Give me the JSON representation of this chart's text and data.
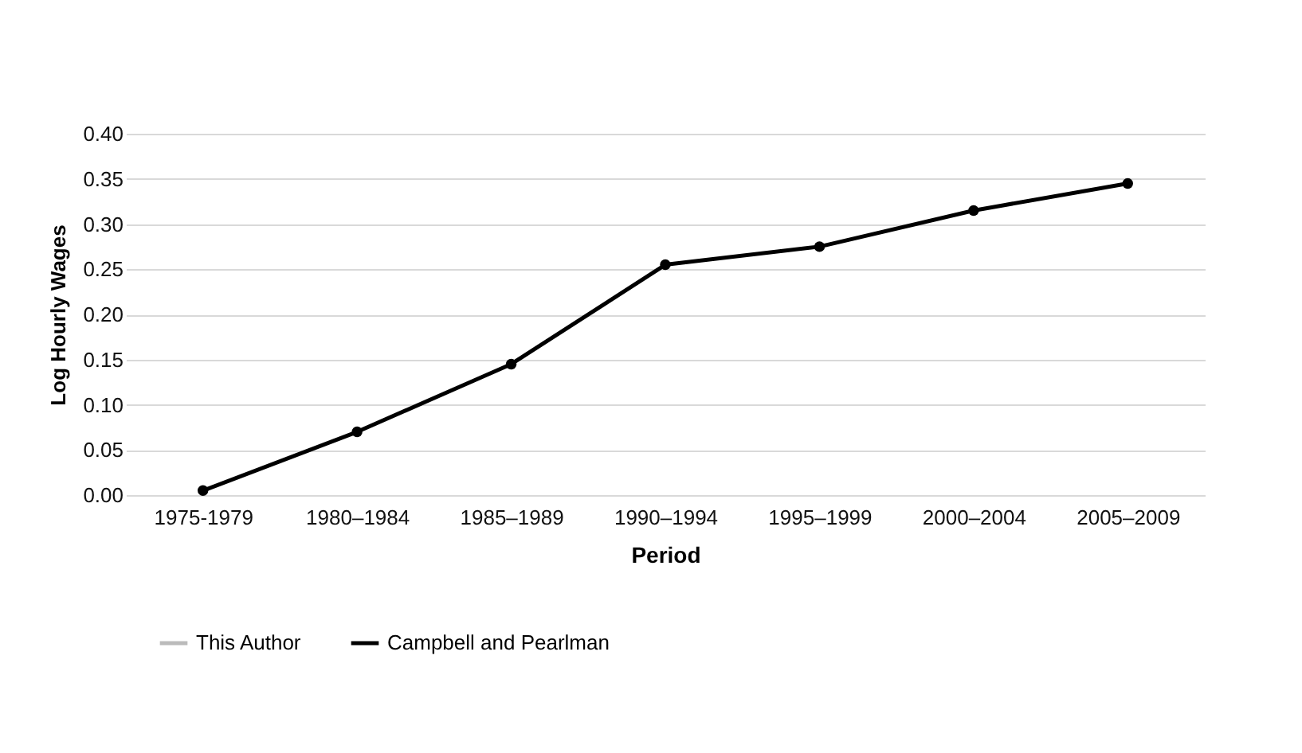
{
  "chart_data": {
    "type": "line",
    "xlabel": "Period",
    "ylabel": "Log Hourly Wages",
    "categories": [
      "1975-1979",
      "1980–1984",
      "1985–1989",
      "1990–1994",
      "1995–1999",
      "2000–2004",
      "2005–2009"
    ],
    "series": [
      {
        "name": "This Author",
        "color": "#bbbbbb",
        "values": [
          null,
          null,
          null,
          null,
          null,
          null,
          null
        ]
      },
      {
        "name": "Campbell and Pearlman",
        "color": "#000000",
        "values": [
          0.005,
          0.07,
          0.145,
          0.255,
          0.275,
          0.315,
          0.345
        ]
      }
    ],
    "ylim": [
      0,
      0.4
    ],
    "yticks": [
      {
        "value": 0,
        "label": "0.00"
      },
      {
        "value": 0.05,
        "label": "0.05"
      },
      {
        "value": 0.1,
        "label": "0.10"
      },
      {
        "value": 0.15,
        "label": "0.15"
      },
      {
        "value": 0.2,
        "label": "0.20"
      },
      {
        "value": 0.25,
        "label": "0.25"
      },
      {
        "value": 0.3,
        "label": "0.30"
      },
      {
        "value": 0.35,
        "label": "0.35"
      },
      {
        "value": 0.4,
        "label": "0.40"
      }
    ],
    "grid": "y",
    "legend": "bottom",
    "marker": "circle",
    "line_style": "solid"
  }
}
